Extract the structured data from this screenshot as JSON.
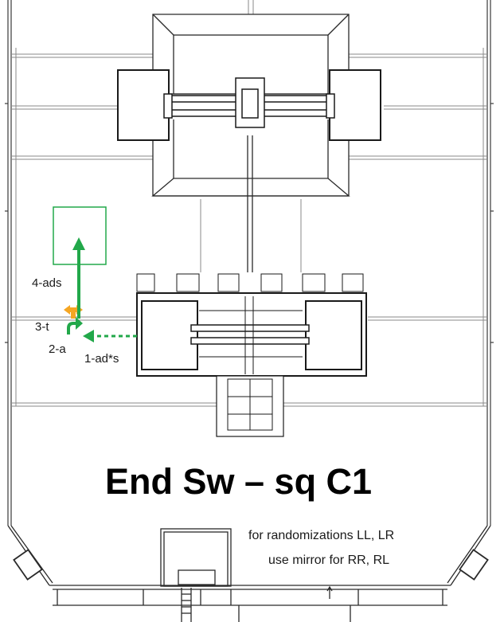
{
  "title": "End Sw – sq C1",
  "note_lines": [
    "for randomizations  LL, LR",
    "use mirror for RR, RL"
  ],
  "steps": [
    {
      "label": "4-ads",
      "color": "#22a84a"
    },
    {
      "label": "3-t",
      "color": "#f5a623"
    },
    {
      "label": "2-a",
      "color": "#22a84a"
    },
    {
      "label": "1-ad*s",
      "color": "#22a84a"
    }
  ],
  "colors": {
    "line": "#3a3a3a",
    "grid": "#8a8a8a",
    "target_box": "#22a84a",
    "move_arrow": "#22a84a",
    "turn_icon": "#f5a623"
  }
}
